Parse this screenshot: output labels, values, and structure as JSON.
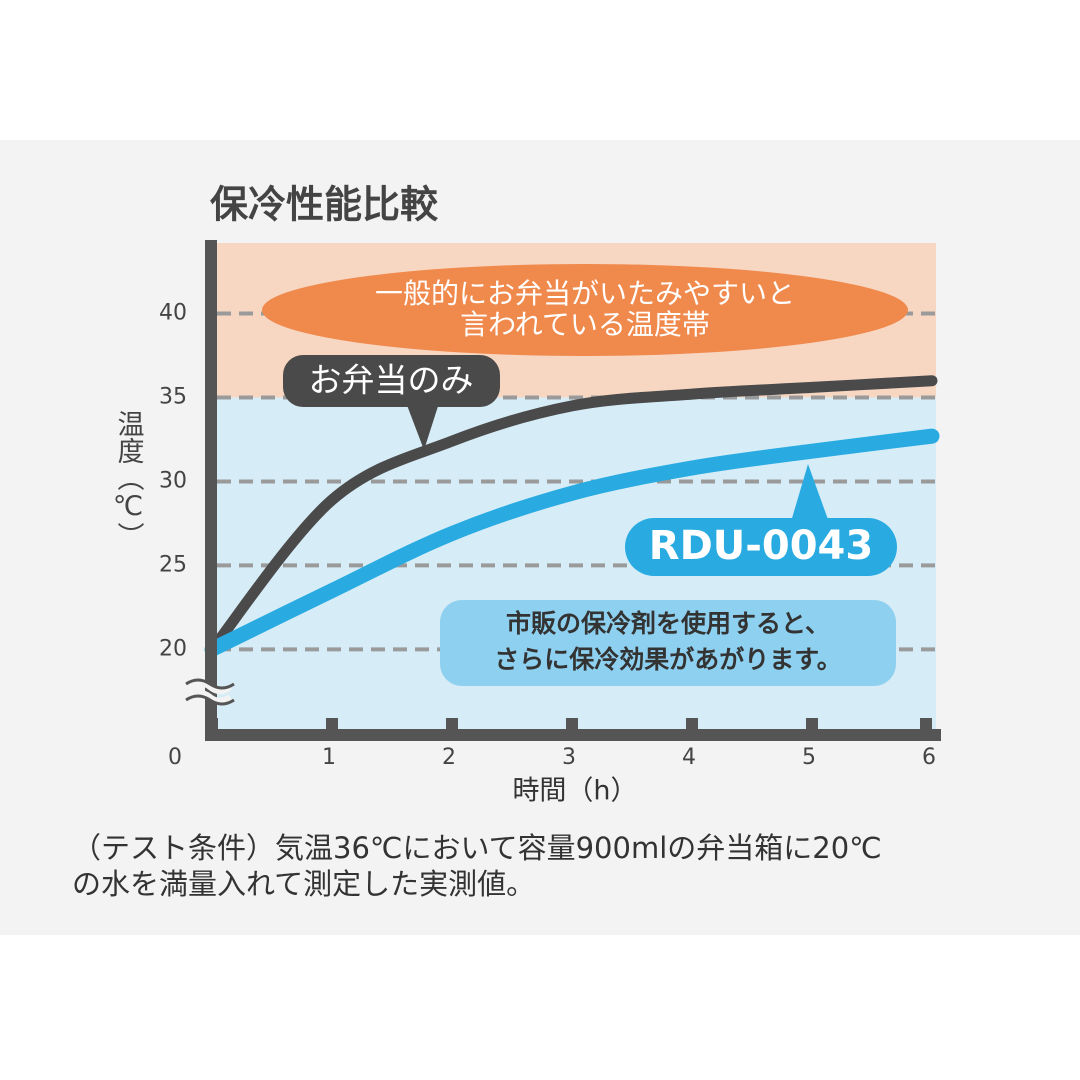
{
  "chart_data": {
    "type": "line",
    "title": "保冷性能比較",
    "y_label": "温度（℃）",
    "x_label": "時間（h）",
    "x": [
      0,
      1,
      2,
      3,
      4,
      5,
      6
    ],
    "series": [
      {
        "name": "お弁当のみ",
        "color": "#4a4a4a",
        "values": [
          20,
          28.9,
          32.4,
          34.5,
          35.2,
          35.6,
          36.0
        ]
      },
      {
        "name": "RDU-0043",
        "color": "#29abe2",
        "values": [
          20,
          23.5,
          26.9,
          29.3,
          30.8,
          31.8,
          32.7
        ]
      }
    ],
    "xlim": [
      0,
      6
    ],
    "ylim": [
      15.2,
      44.2
    ],
    "xticks": [
      0,
      1,
      2,
      3,
      4,
      5,
      6
    ],
    "yticks": [
      20,
      25,
      30,
      35,
      40
    ],
    "grid": true,
    "hot_zone": {
      "from": 35,
      "color": "#f7d6c2",
      "label": [
        "一般的にお弁当がいたみやすいと",
        "言われている温度帯"
      ],
      "label_color": "#f0894c"
    },
    "cool_zone_color": "#d6edf8",
    "annotation": [
      "市販の保冷剤を使用すると、",
      "さらに保冷効果があがります。"
    ],
    "note": [
      "（テスト条件）気温36℃において容量900mlの弁当箱に20℃",
      "の水を満量入れて測定した実測値。"
    ]
  }
}
